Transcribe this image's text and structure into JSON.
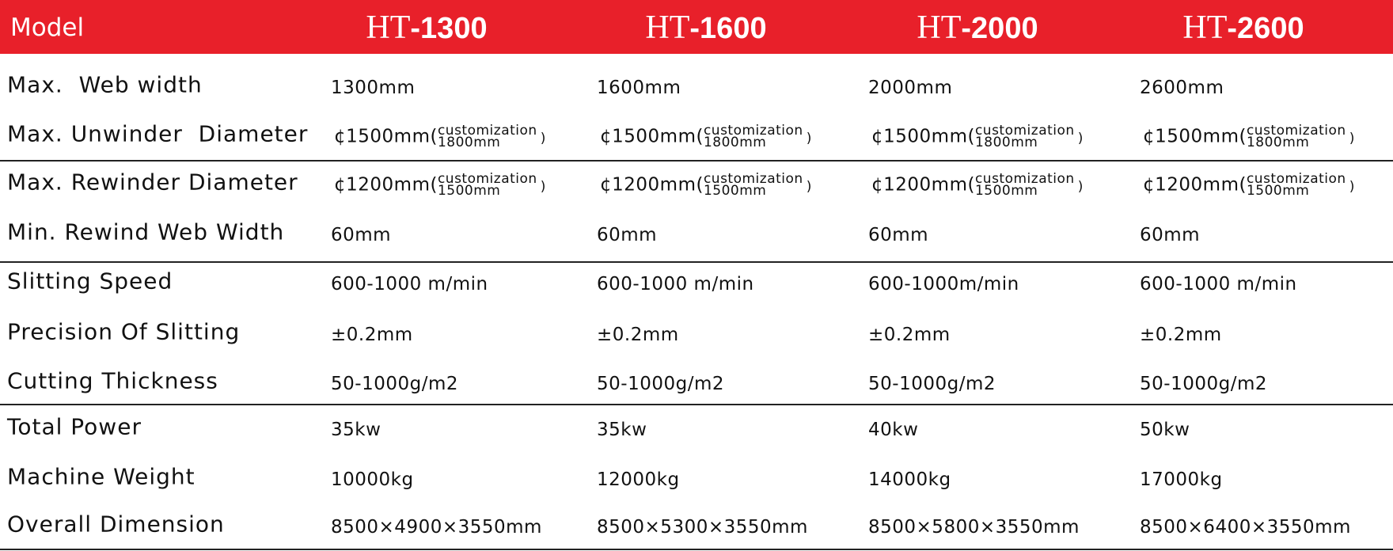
{
  "table": {
    "header": {
      "label": "Model",
      "models": [
        {
          "prefix": "HT",
          "number": "-1300"
        },
        {
          "prefix": "HT",
          "number": "-1600"
        },
        {
          "prefix": "HT",
          "number": "-2000"
        },
        {
          "prefix": "HT",
          "number": "-2600"
        }
      ]
    },
    "rows": [
      {
        "label": "Max.  Web width",
        "cells": [
          "1300mm",
          "1600mm",
          "2000mm",
          "2600mm"
        ]
      },
      {
        "label": "Max. Unwinder  Diameter",
        "cells": [
          {
            "value": "¢1500mm(",
            "top": "customization",
            "bottom": "1800mm",
            "close": ")"
          },
          {
            "value": "¢1500mm(",
            "top": "customization",
            "bottom": "1800mm",
            "close": ")"
          },
          {
            "value": "¢1500mm(",
            "top": "customization",
            "bottom": "1800mm",
            "close": ")"
          },
          {
            "value": "¢1500mm(",
            "top": "customization",
            "bottom": "1800mm",
            "close": ")"
          }
        ]
      },
      {
        "label": "Max. Rewinder Diameter",
        "cells": [
          {
            "value": "¢1200mm(",
            "top": "customization",
            "bottom": "1500mm",
            "close": ")"
          },
          {
            "value": "¢1200mm(",
            "top": "customization",
            "bottom": "1500mm",
            "close": ")"
          },
          {
            "value": "¢1200mm(",
            "top": "customization",
            "bottom": "1500mm",
            "close": ")"
          },
          {
            "value": "¢1200mm(",
            "top": "customization",
            "bottom": "1500mm",
            "close": ")"
          }
        ]
      },
      {
        "label": "Min. Rewind Web Width",
        "cells": [
          "60mm",
          "60mm",
          "60mm",
          "60mm"
        ]
      },
      {
        "label": "Slitting Speed",
        "cells": [
          "600-1000 m/min",
          "600-1000 m/min",
          "600-1000m/min",
          "600-1000 m/min"
        ]
      },
      {
        "label": "Precision Of Slitting",
        "cells": [
          "±0.2mm",
          "±0.2mm",
          "±0.2mm",
          "±0.2mm"
        ]
      },
      {
        "label": "Cutting Thickness",
        "cells": [
          "50-1000g/m2",
          "50-1000g/m2",
          "50-1000g/m2",
          "50-1000g/m2"
        ]
      },
      {
        "label": "Total Power",
        "cells": [
          "35kw",
          "35kw",
          "40kw",
          "50kw"
        ]
      },
      {
        "label": "Machine Weight",
        "cells": [
          "10000kg",
          "12000kg",
          "14000kg",
          "17000kg"
        ]
      },
      {
        "label": "Overall Dimension",
        "cells": [
          "8500×4900×3550mm",
          "8500×5300×3550mm",
          "8500×5800×3550mm",
          "8500×6400×3550mm"
        ]
      }
    ]
  }
}
